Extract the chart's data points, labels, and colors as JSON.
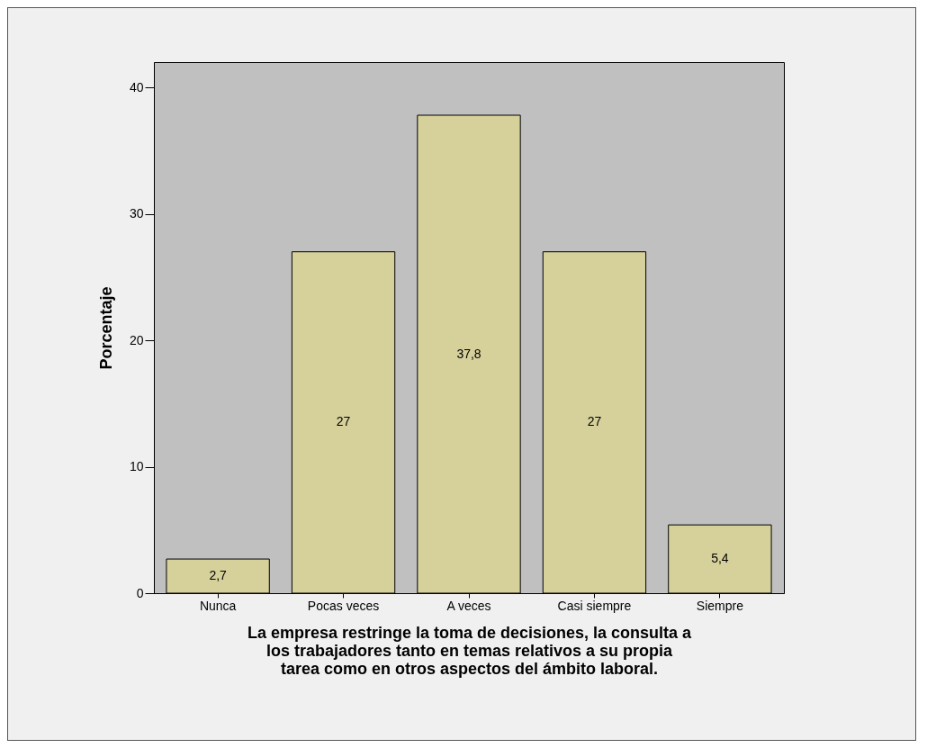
{
  "chart_data": {
    "type": "bar",
    "xlabel": "La empresa restringe la toma de decisiones, la consulta a\nlos trabajadores tanto en temas relativos a su propia\ntarea como en otros aspectos del ámbito laboral.",
    "ylabel": "Porcentaje",
    "categories": [
      "Nunca",
      "Pocas veces",
      "A veces",
      "Casi siempre",
      "Siempre"
    ],
    "values": [
      2.7,
      27,
      37.8,
      27,
      5.4
    ],
    "value_labels": [
      "2,7",
      "27",
      "37,8",
      "27",
      "5,4"
    ],
    "color": "#d6d09b",
    "ylim": [
      0,
      42
    ],
    "yticks": [
      0,
      10,
      20,
      30,
      40
    ],
    "grid": false
  }
}
